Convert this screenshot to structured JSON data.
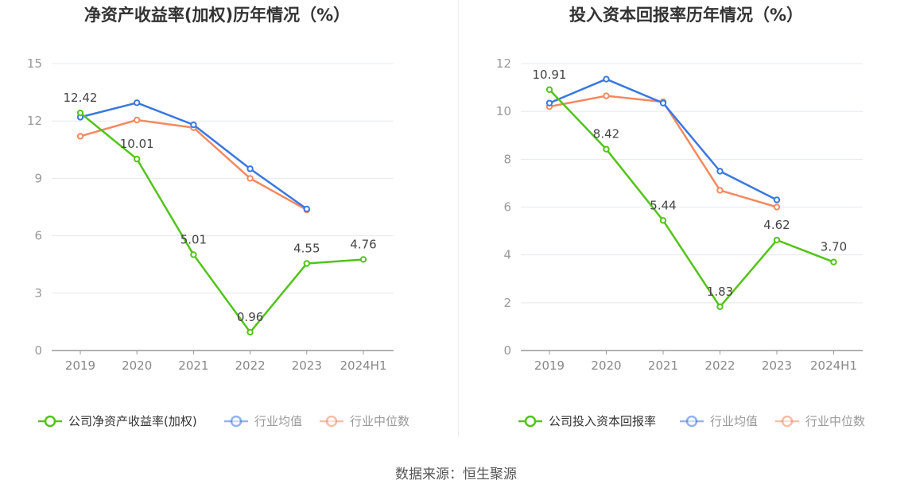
{
  "source_text": "数据来源：恒生聚源",
  "chart_data": [
    {
      "type": "line",
      "title": "净资产收益率(加权)历年情况（%）",
      "categories": [
        "2019",
        "2020",
        "2021",
        "2022",
        "2023",
        "2024H1"
      ],
      "ylim": [
        0,
        15
      ],
      "yticks": [
        0,
        3,
        6,
        9,
        12,
        15
      ],
      "grid": true,
      "legend_position": "bottom",
      "series": [
        {
          "name": "公司净资产收益率(加权)",
          "color": "#52c41a",
          "values": [
            12.42,
            10.01,
            5.01,
            0.96,
            4.55,
            4.76
          ],
          "labels": [
            "12.42",
            "10.01",
            "5.01",
            "0.96",
            "4.55",
            "4.76"
          ]
        },
        {
          "name": "行业均值",
          "color": "#3a78e0",
          "values": [
            12.2,
            12.95,
            11.8,
            9.5,
            7.4,
            null
          ]
        },
        {
          "name": "行业中位数",
          "color": "#f4895f",
          "values": [
            11.2,
            12.05,
            11.65,
            9.0,
            7.35,
            null
          ]
        }
      ]
    },
    {
      "type": "line",
      "title": "投入资本回报率历年情况（%）",
      "categories": [
        "2019",
        "2020",
        "2021",
        "2022",
        "2023",
        "2024H1"
      ],
      "ylim": [
        0,
        12
      ],
      "yticks": [
        0,
        2,
        4,
        6,
        8,
        10,
        12
      ],
      "grid": true,
      "legend_position": "bottom",
      "series": [
        {
          "name": "公司投入资本回报率",
          "color": "#52c41a",
          "values": [
            10.91,
            8.42,
            5.44,
            1.83,
            4.62,
            3.7
          ],
          "labels": [
            "10.91",
            "8.42",
            "5.44",
            "1.83",
            "4.62",
            "3.70"
          ]
        },
        {
          "name": "行业均值",
          "color": "#3a78e0",
          "values": [
            10.35,
            11.35,
            10.35,
            7.5,
            6.3,
            null
          ]
        },
        {
          "name": "行业中位数",
          "color": "#f4895f",
          "values": [
            10.2,
            10.65,
            10.4,
            6.7,
            6.0,
            null
          ]
        }
      ]
    }
  ]
}
